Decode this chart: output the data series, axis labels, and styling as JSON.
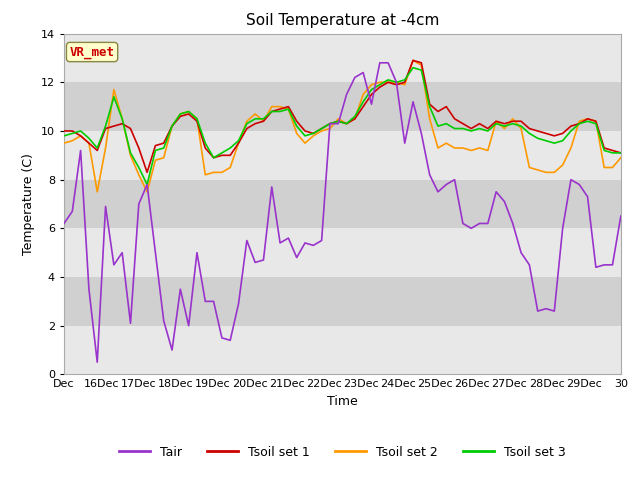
{
  "title": "Soil Temperature at -4cm",
  "xlabel": "Time",
  "ylabel": "Temperature (C)",
  "ylim": [
    0,
    14
  ],
  "yticks": [
    0,
    2,
    4,
    6,
    8,
    10,
    12,
    14
  ],
  "xlim": [
    0,
    15
  ],
  "xtick_labels": [
    "Dec",
    "16Dec",
    "17Dec",
    "18Dec",
    "19Dec",
    "20Dec",
    "21Dec",
    "22Dec",
    "23Dec",
    "24Dec",
    "25Dec",
    "26Dec",
    "27Dec",
    "28Dec",
    "29Dec",
    "30"
  ],
  "xtick_positions": [
    0,
    1,
    2,
    3,
    4,
    5,
    6,
    7,
    8,
    9,
    10,
    11,
    12,
    13,
    14,
    15
  ],
  "annotation_text": "VR_met",
  "annotation_color": "#cc0000",
  "annotation_bg": "#ffffcc",
  "band_colors": [
    "#e8e8e8",
    "#d0d0d0"
  ],
  "line_colors": {
    "Tair": "#9933cc",
    "Tsoil1": "#cc0000",
    "Tsoil2": "#ff9900",
    "Tsoil3": "#00cc00"
  },
  "legend_labels": [
    "Tair",
    "Tsoil set 1",
    "Tsoil set 2",
    "Tsoil set 3"
  ],
  "title_fontsize": 11,
  "axis_fontsize": 9,
  "tick_fontsize": 8,
  "Tair": [
    6.2,
    6.7,
    9.2,
    3.5,
    0.5,
    6.9,
    4.5,
    5.0,
    2.1,
    7.0,
    7.8,
    5.0,
    2.2,
    1.0,
    3.5,
    2.0,
    5.0,
    3.0,
    3.0,
    1.5,
    1.4,
    2.9,
    5.5,
    4.6,
    4.7,
    7.7,
    5.4,
    5.6,
    4.8,
    5.4,
    5.3,
    5.5,
    10.3,
    10.3,
    11.5,
    12.2,
    12.4,
    11.1,
    12.8,
    12.8,
    12.0,
    9.5,
    11.2,
    9.9,
    8.2,
    7.5,
    7.8,
    8.0,
    6.2,
    6.0,
    6.2,
    6.2,
    7.5,
    7.1,
    6.2,
    5.0,
    4.5,
    2.6,
    2.7,
    2.6,
    6.0,
    8.0,
    7.8,
    7.3,
    4.4,
    4.5,
    4.5,
    6.5
  ],
  "Tsoil1": [
    10.0,
    10.0,
    9.8,
    9.5,
    9.2,
    10.1,
    10.2,
    10.3,
    10.1,
    9.3,
    8.3,
    9.4,
    9.5,
    10.2,
    10.6,
    10.7,
    10.4,
    9.3,
    8.9,
    9.0,
    9.0,
    9.5,
    10.1,
    10.3,
    10.4,
    10.8,
    10.9,
    11.0,
    10.4,
    10.0,
    9.9,
    10.1,
    10.3,
    10.4,
    10.3,
    10.5,
    11.0,
    11.5,
    11.8,
    12.0,
    11.9,
    12.0,
    12.9,
    12.8,
    11.1,
    10.8,
    11.0,
    10.5,
    10.3,
    10.1,
    10.3,
    10.1,
    10.4,
    10.3,
    10.4,
    10.4,
    10.1,
    10.0,
    9.9,
    9.8,
    9.9,
    10.2,
    10.3,
    10.5,
    10.4,
    9.3,
    9.2,
    9.1
  ],
  "Tsoil2": [
    9.5,
    9.6,
    9.8,
    9.5,
    7.5,
    9.3,
    11.7,
    10.5,
    9.0,
    8.2,
    7.5,
    8.8,
    8.9,
    10.2,
    10.7,
    10.8,
    10.5,
    8.2,
    8.3,
    8.3,
    8.5,
    9.5,
    10.4,
    10.7,
    10.4,
    11.0,
    11.0,
    10.9,
    9.9,
    9.5,
    9.8,
    10.0,
    10.1,
    10.5,
    10.3,
    10.5,
    11.5,
    11.9,
    12.0,
    12.0,
    12.0,
    11.9,
    12.9,
    12.7,
    10.5,
    9.3,
    9.5,
    9.3,
    9.3,
    9.2,
    9.3,
    9.2,
    10.4,
    10.1,
    10.5,
    10.1,
    8.5,
    8.4,
    8.3,
    8.3,
    8.6,
    9.3,
    10.4,
    10.5,
    10.4,
    8.5,
    8.5,
    8.9
  ],
  "Tsoil3": [
    9.8,
    9.9,
    10.0,
    9.7,
    9.3,
    10.2,
    11.4,
    10.5,
    9.1,
    8.5,
    7.8,
    9.2,
    9.3,
    10.2,
    10.7,
    10.8,
    10.5,
    9.5,
    8.9,
    9.1,
    9.3,
    9.6,
    10.3,
    10.5,
    10.5,
    10.8,
    10.8,
    10.9,
    10.2,
    9.8,
    9.9,
    10.1,
    10.3,
    10.4,
    10.3,
    10.6,
    11.2,
    11.7,
    11.9,
    12.1,
    12.0,
    12.1,
    12.6,
    12.5,
    11.0,
    10.2,
    10.3,
    10.1,
    10.1,
    10.0,
    10.1,
    10.0,
    10.3,
    10.2,
    10.3,
    10.2,
    9.9,
    9.7,
    9.6,
    9.5,
    9.6,
    10.0,
    10.3,
    10.4,
    10.3,
    9.2,
    9.1,
    9.1
  ]
}
